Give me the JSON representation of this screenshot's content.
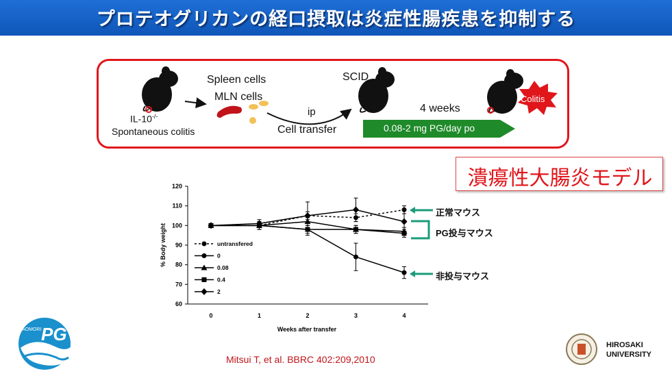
{
  "header": {
    "title": "プロテオグリカンの経口摂取は炎症性腸疾患を抑制する"
  },
  "scheme": {
    "donor_label": "IL-10",
    "donor_superscript": "-/-",
    "donor_sublabel": "Spontaneous colitis",
    "spleen_label": "Spleen cells",
    "mln_label": "MLN cells",
    "route_label": "ip",
    "transfer_label": "Cell transfer",
    "recipient_label": "SCID",
    "duration_label": "4 weeks",
    "treatment_label": "0.08-2 mg PG/day po",
    "outcome_label": "Colitis"
  },
  "model_label": "潰瘍性大腸炎モデル",
  "chart_data": {
    "type": "line",
    "x": [
      0,
      1,
      2,
      3,
      4
    ],
    "xlabel": "Weeks after transfer",
    "ylabel": "% Body weight",
    "ylim": [
      60,
      120
    ],
    "yticks": [
      60,
      70,
      80,
      90,
      100,
      110,
      120
    ],
    "xticks": [
      0,
      1,
      2,
      3,
      4
    ],
    "grid": false,
    "legend_position": "left",
    "series": [
      {
        "name": "untransfered",
        "values": [
          100,
          100,
          105,
          104,
          108
        ],
        "style": "dotted",
        "marker": "circle"
      },
      {
        "name": "0",
        "values": [
          100,
          100,
          98,
          84,
          76
        ],
        "style": "solid",
        "marker": "circle"
      },
      {
        "name": "0.08",
        "values": [
          100,
          100,
          102,
          98,
          97
        ],
        "style": "solid",
        "marker": "triangle"
      },
      {
        "name": "0.4",
        "values": [
          100,
          100,
          98,
          98,
          96
        ],
        "style": "solid",
        "marker": "square"
      },
      {
        "name": "2",
        "values": [
          100,
          101,
          105,
          108,
          102
        ],
        "style": "solid",
        "marker": "diamond"
      }
    ],
    "annotations": [
      {
        "text": "正常マウス",
        "color": "#1a9c7a"
      },
      {
        "text": "PG投与マウス",
        "color": "#1a9c7a"
      },
      {
        "text": "非投与マウス",
        "color": "#1a9c7a"
      }
    ]
  },
  "footer": {
    "citation": "Mitsui T, et al. BBRC 402:209,2010",
    "logo_left_small": "AOMORI",
    "logo_left_big": "PG",
    "logo_right_line1": "HIROSAKI",
    "logo_right_line2": "UNIVERSITY"
  }
}
